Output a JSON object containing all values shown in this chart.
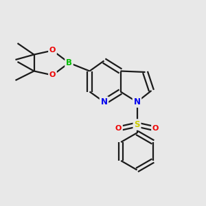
{
  "background_color": "#e8e8e8",
  "bond_color": "#1a1a1a",
  "bond_width": 1.6,
  "atom_colors": {
    "B": "#00bb00",
    "O": "#ee0000",
    "N": "#0000ee",
    "S": "#cccc00",
    "C": "#1a1a1a"
  },
  "figsize": [
    3.0,
    3.0
  ],
  "dpi": 100
}
